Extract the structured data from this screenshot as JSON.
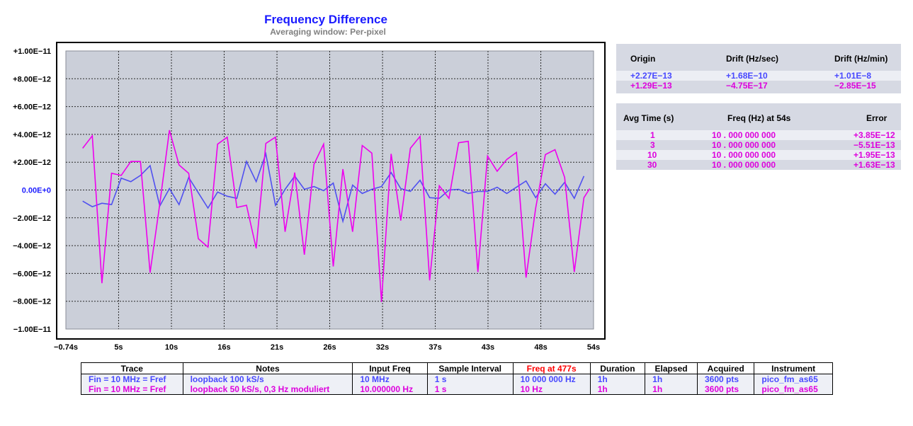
{
  "chart_data": {
    "type": "line",
    "title": "Frequency Difference",
    "subtitle": "Averaging window: Per-pixel",
    "xlim": [
      -0.74,
      54
    ],
    "ylim": [
      -1e-11,
      1e-11
    ],
    "x_tick_labels": [
      "−0.74s",
      "5s",
      "10s",
      "16s",
      "21s",
      "26s",
      "32s",
      "37s",
      "43s",
      "48s",
      "54s"
    ],
    "x_tick_values": [
      -0.74,
      4.73,
      10.21,
      15.68,
      21.16,
      26.63,
      32.11,
      37.58,
      43.05,
      48.53,
      54.0
    ],
    "y_tick_labels": [
      "+1.00E−11",
      "+8.00E−12",
      "+6.00E−12",
      "+4.00E−12",
      "+2.00E−12",
      "0.00E+0",
      "−2.00E−12",
      "−4.00E−12",
      "−6.00E−12",
      "−8.00E−12",
      "−1.00E−11"
    ],
    "y_tick_values": [
      1e-11,
      8e-12,
      6e-12,
      4e-12,
      2e-12,
      0,
      -2e-12,
      -4e-12,
      -6e-12,
      -8e-12,
      -1e-11
    ],
    "grid": true,
    "series": [
      {
        "color": "#5050f0",
        "x": [
          1,
          2,
          3,
          4,
          5,
          6,
          7,
          8,
          9,
          10,
          11,
          12,
          13,
          14,
          15,
          16,
          17,
          18,
          19,
          20,
          21,
          22,
          23,
          24,
          25,
          26,
          27,
          28,
          29,
          30,
          31,
          32,
          33,
          34,
          35,
          36,
          37,
          38,
          39,
          40,
          41,
          42,
          43,
          44,
          45,
          46,
          47,
          48,
          49,
          50,
          51,
          52,
          53
        ],
        "values": [
          -8e-13,
          -1.2e-12,
          -9.5e-13,
          -1.05e-12,
          8.5e-13,
          6e-13,
          1.05e-12,
          1.75e-12,
          -1.15e-12,
          1e-13,
          -1.05e-12,
          9e-13,
          -2e-13,
          -1.3e-12,
          -1.5e-13,
          -4.5e-13,
          -6e-13,
          2.05e-12,
          6e-13,
          2.6e-12,
          -1.1e-12,
          5e-14,
          1e-12,
          5e-14,
          2.5e-13,
          -5e-14,
          5e-13,
          -2.25e-12,
          3.5e-13,
          -2.5e-13,
          5e-14,
          2.5e-13,
          1.25e-12,
          1e-13,
          -1e-13,
          7e-13,
          -5.5e-13,
          -6e-13,
          0.0,
          5e-14,
          -2.5e-13,
          -1e-13,
          -1e-13,
          2e-13,
          -2.5e-13,
          2e-13,
          6.5e-13,
          -5.5e-13,
          4.5e-13,
          -3e-13,
          5.5e-13,
          -6e-13,
          1e-12
        ]
      },
      {
        "color": "#ee00ee",
        "x": [
          1,
          2,
          3,
          4,
          5,
          6,
          7,
          8,
          9,
          10,
          11,
          12,
          13,
          14,
          15,
          16,
          17,
          18,
          19,
          20,
          21,
          22,
          23,
          24,
          25,
          26,
          27,
          28,
          29,
          30,
          31,
          32,
          33,
          34,
          35,
          36,
          37,
          38,
          39,
          40,
          41,
          42,
          43,
          44,
          45,
          46,
          47,
          48,
          49,
          50,
          51,
          52,
          53,
          53.6
        ],
        "values": [
          3e-12,
          3.9e-12,
          -6.7e-12,
          1.2e-12,
          1.05e-12,
          2.05e-12,
          2.05e-12,
          -5.95e-12,
          -1e-12,
          4.3e-12,
          1.8e-12,
          1.2e-12,
          -3.5e-12,
          -4.1e-12,
          3.3e-12,
          3.8e-12,
          -1.25e-12,
          -1.1e-12,
          -4.2e-12,
          3.35e-12,
          3.8e-12,
          -3e-12,
          1.25e-12,
          -4.65e-12,
          1.85e-12,
          3.3e-12,
          -5.5e-12,
          1.5e-12,
          -3e-12,
          3.2e-12,
          2.65e-12,
          -8.05e-12,
          2.6e-12,
          -2.2e-12,
          3e-12,
          3.85e-12,
          -6.5e-12,
          3e-13,
          -6e-13,
          3.4e-12,
          3.5e-12,
          -5.9e-12,
          2.45e-12,
          1.35e-12,
          2.2e-12,
          2.7e-12,
          -6.3e-12,
          -1.3e-12,
          2.55e-12,
          2.9e-12,
          9e-13,
          -5.9e-12,
          -5.5e-13,
          1e-13
        ]
      }
    ]
  },
  "drift_panel": {
    "headers": [
      "Origin",
      "Drift (Hz/sec)",
      "Drift (Hz/min)"
    ],
    "rows": [
      {
        "origin": "+2.27E−13",
        "drift_sec": "+1.68E−10",
        "drift_min": "+1.01E−8"
      },
      {
        "origin": "+1.29E−13",
        "drift_sec": "−4.75E−17",
        "drift_min": "−2.85E−15"
      }
    ]
  },
  "avg_panel": {
    "headers": [
      "Avg Time (s)",
      "Freq (Hz) at 54s",
      "Error"
    ],
    "rows": [
      {
        "avg": "1",
        "freq": "10 . 000  000  000",
        "error": "+3.85E−12"
      },
      {
        "avg": "3",
        "freq": "10 . 000  000  000",
        "error": "−5.51E−13"
      },
      {
        "avg": "10",
        "freq": "10 . 000  000  000",
        "error": "+1.95E−13"
      },
      {
        "avg": "30",
        "freq": "10 . 000  000  000",
        "error": "+1.63E−13"
      }
    ]
  },
  "info_table": {
    "headers": [
      "Trace",
      "Notes",
      "Input Freq",
      "Sample Interval",
      "Freq at 477s",
      "Duration",
      "Elapsed",
      "Acquired",
      "Instrument"
    ],
    "rows": [
      [
        "Fin = 10 MHz = Fref",
        "loopback 100 kS/s",
        "10 MHz",
        "1 s",
        "10 000 000 Hz",
        "1h",
        "1h",
        "3600 pts",
        "pico_fm_as65"
      ],
      [
        "Fin = 10 MHz = Fref",
        "loopback 50 kS/s, 0,3 Hz moduliert",
        "10.000000 Hz",
        "1 s",
        "10 Hz",
        "1h",
        "1h",
        "3600 pts",
        "pico_fm_as65"
      ]
    ]
  }
}
